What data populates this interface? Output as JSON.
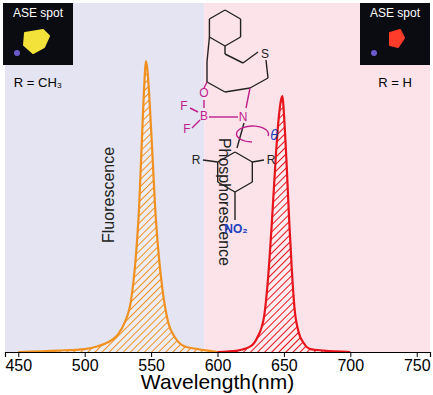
{
  "chart_data": {
    "type": "line",
    "x_label": "Wavelength(nm)",
    "xlim": [
      440,
      760
    ],
    "xticks": [
      450,
      500,
      550,
      600,
      650,
      700,
      750
    ],
    "ylim": [
      0,
      1.2
    ],
    "tick_labels": "x",
    "grid": false,
    "regions": [
      {
        "label": "Fluorescence",
        "xrange": [
          440,
          590
        ],
        "color": "#e4e4f3"
      },
      {
        "label": "Phosphorescence",
        "xrange": [
          590,
          760
        ],
        "color": "#fce3ea"
      }
    ],
    "series": [
      {
        "color": "#f0901f",
        "line_style": "solid",
        "x": [
          450,
          480,
          500,
          510,
          520,
          525,
          530,
          535,
          538,
          541,
          543,
          545,
          546,
          547,
          549,
          551,
          553,
          556,
          559,
          563,
          568,
          575,
          585,
          600
        ],
        "values": [
          0,
          0.005,
          0.01,
          0.02,
          0.04,
          0.06,
          0.1,
          0.18,
          0.3,
          0.5,
          0.72,
          0.93,
          1.0,
          0.98,
          0.85,
          0.68,
          0.5,
          0.32,
          0.2,
          0.1,
          0.05,
          0.02,
          0.01,
          0
        ]
      },
      {
        "color": "#e8141c",
        "line_style": "solid",
        "x": [
          600,
          615,
          625,
          630,
          635,
          638,
          641,
          644,
          646,
          648,
          649,
          650,
          652,
          654,
          656,
          658,
          661,
          665,
          670,
          680,
          700
        ],
        "values": [
          0,
          0.005,
          0.02,
          0.05,
          0.12,
          0.25,
          0.45,
          0.68,
          0.8,
          0.87,
          0.88,
          0.82,
          0.65,
          0.45,
          0.28,
          0.15,
          0.07,
          0.03,
          0.01,
          0.005,
          0
        ]
      }
    ],
    "insets": [
      {
        "title": "ASE spot",
        "caption": "R = CH₃",
        "color": "#f2e23a"
      },
      {
        "title": "ASE spot",
        "caption": "R = H",
        "color": "#ff3b2a"
      }
    ],
    "structure_labels": [
      "S",
      "O",
      "B",
      "N",
      "F",
      "F",
      "R",
      "R",
      "NO₂",
      "θ"
    ]
  }
}
